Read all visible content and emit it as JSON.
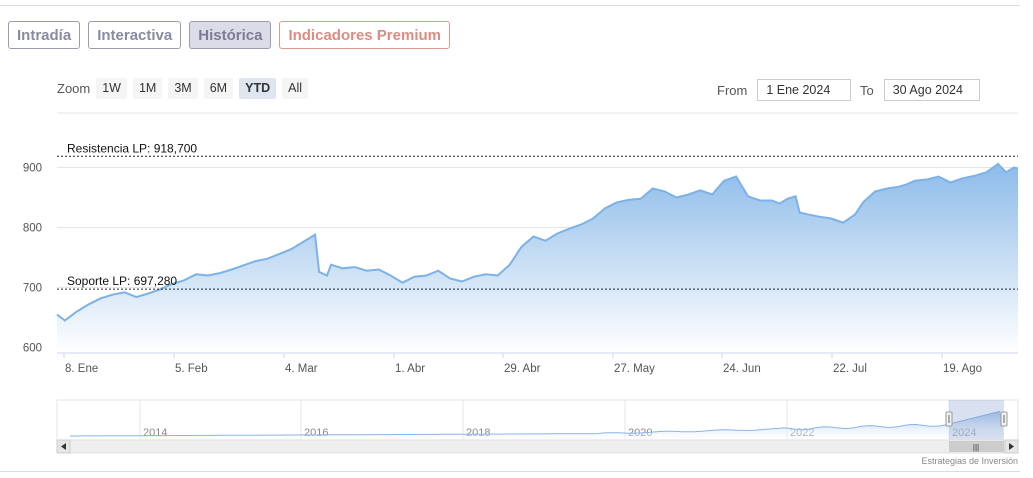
{
  "tabs": [
    {
      "label": "Intradía",
      "active": false
    },
    {
      "label": "Interactiva",
      "active": false
    },
    {
      "label": "Histórica",
      "active": true
    },
    {
      "label": "Indicadores Premium",
      "active": false
    }
  ],
  "zoom": {
    "label": "Zoom",
    "buttons": [
      "1W",
      "1M",
      "3M",
      "6M",
      "YTD",
      "All"
    ],
    "selected": "YTD"
  },
  "range": {
    "from_label": "From",
    "from_value": "1 Ene 2024",
    "to_label": "To",
    "to_value": "30 Ago 2024"
  },
  "credit": "Estrategias de Inversión",
  "colors": {
    "line": "#7cb2e8",
    "area_top": "#8dbbe9",
    "area_bottom": "#ffffff"
  },
  "chart_data": {
    "type": "area",
    "title": "",
    "xlabel": "",
    "ylabel": "",
    "ylim": [
      600,
      918.7
    ],
    "y_ticks": [
      600,
      700,
      800,
      900
    ],
    "x_ticks": [
      "8. Ene",
      "5. Feb",
      "4. Mar",
      "1. Abr",
      "29. Abr",
      "27. May",
      "24. Jun",
      "22. Jul",
      "19. Ago"
    ],
    "grid": true,
    "legend": "none",
    "reference_lines": [
      {
        "label": "Resistencia LP: 918,700",
        "value": 918.7
      },
      {
        "label": "Soporte LP: 697,280",
        "value": 697.28
      }
    ],
    "series": [
      {
        "x": [
          "2024-01-01",
          "2024-01-03",
          "2024-01-06",
          "2024-01-09",
          "2024-01-12",
          "2024-01-15",
          "2024-01-18",
          "2024-01-21",
          "2024-01-24",
          "2024-01-27",
          "2024-01-30",
          "2024-02-02",
          "2024-02-05",
          "2024-02-08",
          "2024-02-11",
          "2024-02-14",
          "2024-02-17",
          "2024-02-20",
          "2024-02-23",
          "2024-02-26",
          "2024-02-29",
          "2024-03-03",
          "2024-03-06",
          "2024-03-07",
          "2024-03-09",
          "2024-03-10",
          "2024-03-11",
          "2024-03-13",
          "2024-03-16",
          "2024-03-19",
          "2024-03-22",
          "2024-03-25",
          "2024-03-28",
          "2024-03-31",
          "2024-04-03",
          "2024-04-06",
          "2024-04-09",
          "2024-04-12",
          "2024-04-15",
          "2024-04-18",
          "2024-04-21",
          "2024-04-24",
          "2024-04-27",
          "2024-04-30",
          "2024-05-03",
          "2024-05-06",
          "2024-05-09",
          "2024-05-12",
          "2024-05-15",
          "2024-05-18",
          "2024-05-21",
          "2024-05-24",
          "2024-05-27",
          "2024-05-30",
          "2024-06-02",
          "2024-06-05",
          "2024-06-08",
          "2024-06-11",
          "2024-06-14",
          "2024-06-17",
          "2024-06-20",
          "2024-06-23",
          "2024-06-26",
          "2024-06-29",
          "2024-07-01",
          "2024-07-03",
          "2024-07-05",
          "2024-07-06",
          "2024-07-08",
          "2024-07-11",
          "2024-07-14",
          "2024-07-17",
          "2024-07-20",
          "2024-07-22",
          "2024-07-25",
          "2024-07-28",
          "2024-07-31",
          "2024-08-02",
          "2024-08-04",
          "2024-08-07",
          "2024-08-10",
          "2024-08-13",
          "2024-08-16",
          "2024-08-19",
          "2024-08-22",
          "2024-08-25",
          "2024-08-27",
          "2024-08-29",
          "2024-08-30"
        ],
        "values": [
          655,
          645,
          660,
          672,
          682,
          688,
          692,
          684,
          690,
          697,
          706,
          712,
          722,
          720,
          724,
          730,
          737,
          744,
          748,
          756,
          764,
          776,
          788,
          726,
          720,
          738,
          736,
          732,
          734,
          728,
          730,
          720,
          708,
          718,
          720,
          728,
          715,
          710,
          718,
          722,
          720,
          738,
          768,
          785,
          778,
          790,
          798,
          805,
          815,
          832,
          842,
          846,
          848,
          865,
          860,
          850,
          855,
          862,
          855,
          878,
          885,
          852,
          845,
          845,
          840,
          848,
          852,
          825,
          822,
          818,
          815,
          808,
          822,
          842,
          860,
          865,
          868,
          872,
          878,
          880,
          885,
          875,
          882,
          886,
          892,
          906,
          892,
          900,
          898
        ]
      }
    ],
    "navigator": {
      "x_ticks": [
        "2014",
        "2016",
        "2018",
        "2020",
        "2022",
        "2024"
      ]
    }
  }
}
